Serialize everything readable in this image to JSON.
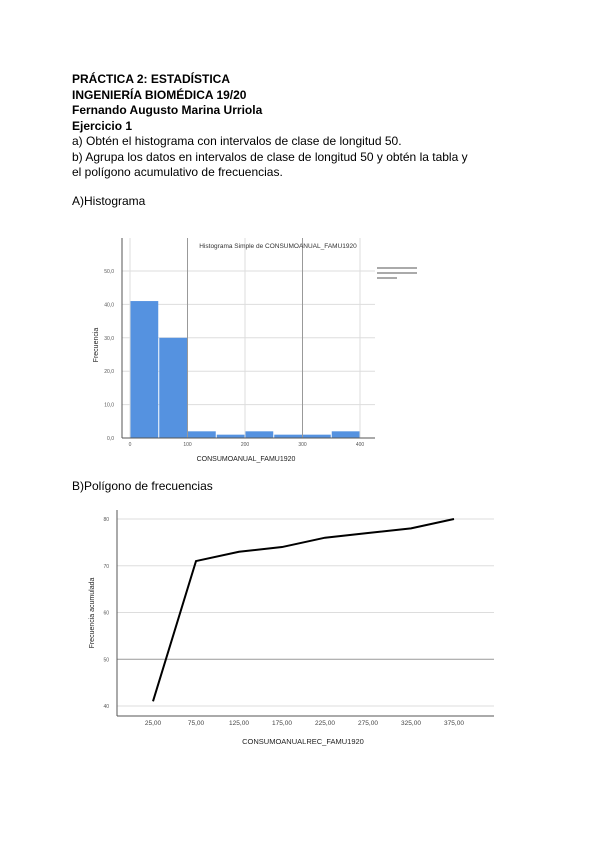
{
  "header": {
    "title": "PRÁCTICA 2: ESTADÍSTICA",
    "degree": "INGENIERÍA BIOMÉDICA 19/20",
    "author": "Fernando Augusto Marina Urriola",
    "exercise": "Ejercicio 1",
    "task_a": "a) Obtén el histograma con intervalos de clase de longitud 50.",
    "task_b": "b) Agrupa los datos en intervalos de clase de longitud 50 y obtén la tabla y el polígono acumulativo de frecuencias."
  },
  "sections": {
    "a": "A)Histograma",
    "b": "B)Polígono de frecuencias"
  },
  "chart_data": [
    {
      "type": "bar",
      "title": "Histograma Simple de CONSUMOANUAL_FAMU1920",
      "xlabel": "CONSUMOANUAL_FAMU1920",
      "ylabel": "Frecuencia",
      "bins": [
        [
          0,
          50
        ],
        [
          50,
          100
        ],
        [
          100,
          150
        ],
        [
          150,
          200
        ],
        [
          200,
          250
        ],
        [
          250,
          300
        ],
        [
          300,
          350
        ],
        [
          350,
          400
        ]
      ],
      "values": [
        41,
        30,
        2,
        1,
        2,
        1,
        1,
        2
      ],
      "xlim": [
        0,
        400
      ],
      "xticks": [
        "0",
        "100",
        "200",
        "300",
        "400"
      ],
      "ylim": [
        0,
        50
      ],
      "yticks": [
        "0,0",
        "10,0",
        "20,0",
        "30,0",
        "40,0",
        "50,0"
      ],
      "grid": true,
      "legend": "top-right",
      "bar_color": "#5592e0"
    },
    {
      "type": "line",
      "xlabel": "CONSUMOANUALREC_FAMU1920",
      "ylabel": "Frecuencia acumulada",
      "categories": [
        "25,00",
        "75,00",
        "125,00",
        "175,00",
        "225,00",
        "275,00",
        "325,00",
        "375,00"
      ],
      "values": [
        41,
        71,
        73,
        74,
        76,
        77,
        78,
        80
      ],
      "ylim": [
        40,
        80
      ],
      "yticks": [
        "40",
        "50",
        "60",
        "70",
        "80"
      ],
      "grid": true,
      "line_color": "#000000"
    }
  ]
}
